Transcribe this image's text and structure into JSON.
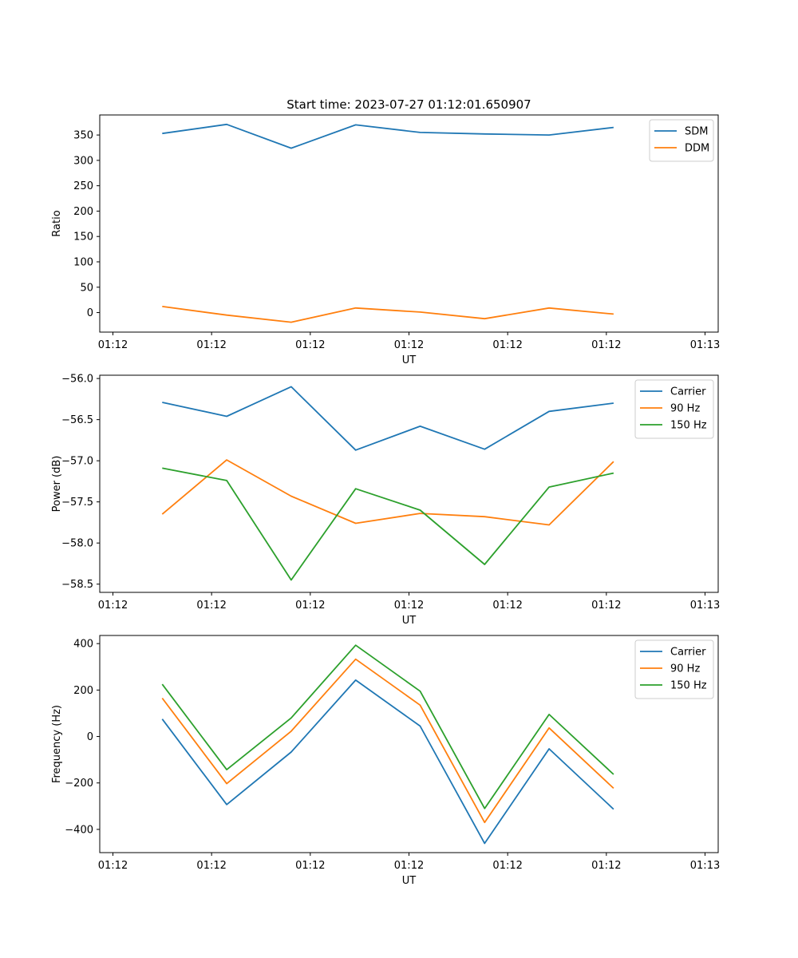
{
  "chart_data": [
    {
      "type": "line",
      "title": "Start time: 2023-07-27 01:12:01.650907",
      "xlabel": "UT",
      "ylabel": "Ratio",
      "ylim": [
        -38.5,
        389.5
      ],
      "yticks": [
        0,
        50,
        100,
        150,
        200,
        250,
        300,
        350
      ],
      "xlim": [
        -0.2,
        9.2
      ],
      "xticks": [
        0,
        1.5,
        3,
        4.5,
        6,
        7.5,
        9
      ],
      "xtick_labels": [
        "01:12",
        "01:12",
        "01:12",
        "01:12",
        "01:12",
        "01:12",
        "01:13"
      ],
      "x": [
        0.75,
        1.73,
        2.71,
        3.69,
        4.67,
        5.65,
        6.63,
        7.61
      ],
      "legend_position": "top-right",
      "series": [
        {
          "name": "SDM",
          "color": "#1f77b4",
          "values": [
            353,
            371,
            324,
            370,
            355,
            352,
            350,
            365
          ]
        },
        {
          "name": "DDM",
          "color": "#ff7f0e",
          "values": [
            12,
            -5,
            -19,
            9,
            1,
            -12,
            9,
            -3
          ]
        }
      ]
    },
    {
      "type": "line",
      "title": "",
      "xlabel": "UT",
      "ylabel": "Power (dB)",
      "ylim": [
        -58.6,
        -55.96
      ],
      "yticks": [
        -58.5,
        -58.0,
        -57.5,
        -57.0,
        -56.5,
        -56.0
      ],
      "ytick_labels": [
        "−58.5",
        "−58.0",
        "−57.5",
        "−57.0",
        "−56.5",
        "−56.0"
      ],
      "xlim": [
        -0.2,
        9.2
      ],
      "xticks": [
        0,
        1.5,
        3,
        4.5,
        6,
        7.5,
        9
      ],
      "xtick_labels": [
        "01:12",
        "01:12",
        "01:12",
        "01:12",
        "01:12",
        "01:12",
        "01:13"
      ],
      "x": [
        0.75,
        1.73,
        2.71,
        3.69,
        4.67,
        5.65,
        6.63,
        7.61
      ],
      "legend_position": "top-right",
      "series": [
        {
          "name": "Carrier",
          "color": "#1f77b4",
          "values": [
            -56.29,
            -56.46,
            -56.1,
            -56.87,
            -56.58,
            -56.86,
            -56.4,
            -56.3
          ]
        },
        {
          "name": "90 Hz",
          "color": "#ff7f0e",
          "values": [
            -57.65,
            -56.99,
            -57.43,
            -57.76,
            -57.64,
            -57.68,
            -57.78,
            -57.01
          ]
        },
        {
          "name": "150 Hz",
          "color": "#2ca02c",
          "values": [
            -57.09,
            -57.24,
            -58.45,
            -57.34,
            -57.6,
            -58.26,
            -57.32,
            -57.15
          ]
        }
      ]
    },
    {
      "type": "line",
      "title": "",
      "xlabel": "UT",
      "ylabel": "Frequency (Hz)",
      "ylim": [
        -500,
        435
      ],
      "yticks": [
        -400,
        -200,
        0,
        200,
        400
      ],
      "ytick_labels": [
        "−400",
        "−200",
        "0",
        "200",
        "400"
      ],
      "xlim": [
        -0.2,
        9.2
      ],
      "xticks": [
        0,
        1.5,
        3,
        4.5,
        6,
        7.5,
        9
      ],
      "xtick_labels": [
        "01:12",
        "01:12",
        "01:12",
        "01:12",
        "01:12",
        "01:12",
        "01:13"
      ],
      "x": [
        0.75,
        1.73,
        2.71,
        3.69,
        4.67,
        5.65,
        6.63,
        7.61
      ],
      "legend_position": "top-right",
      "series": [
        {
          "name": "Carrier",
          "color": "#1f77b4",
          "values": [
            75,
            -293,
            -67,
            243,
            45,
            -460,
            -53,
            -313
          ]
        },
        {
          "name": "90 Hz",
          "color": "#ff7f0e",
          "values": [
            165,
            -203,
            23,
            333,
            135,
            -370,
            37,
            -223
          ]
        },
        {
          "name": "150 Hz",
          "color": "#2ca02c",
          "values": [
            225,
            -143,
            80,
            393,
            195,
            -310,
            95,
            -163
          ]
        }
      ]
    }
  ]
}
